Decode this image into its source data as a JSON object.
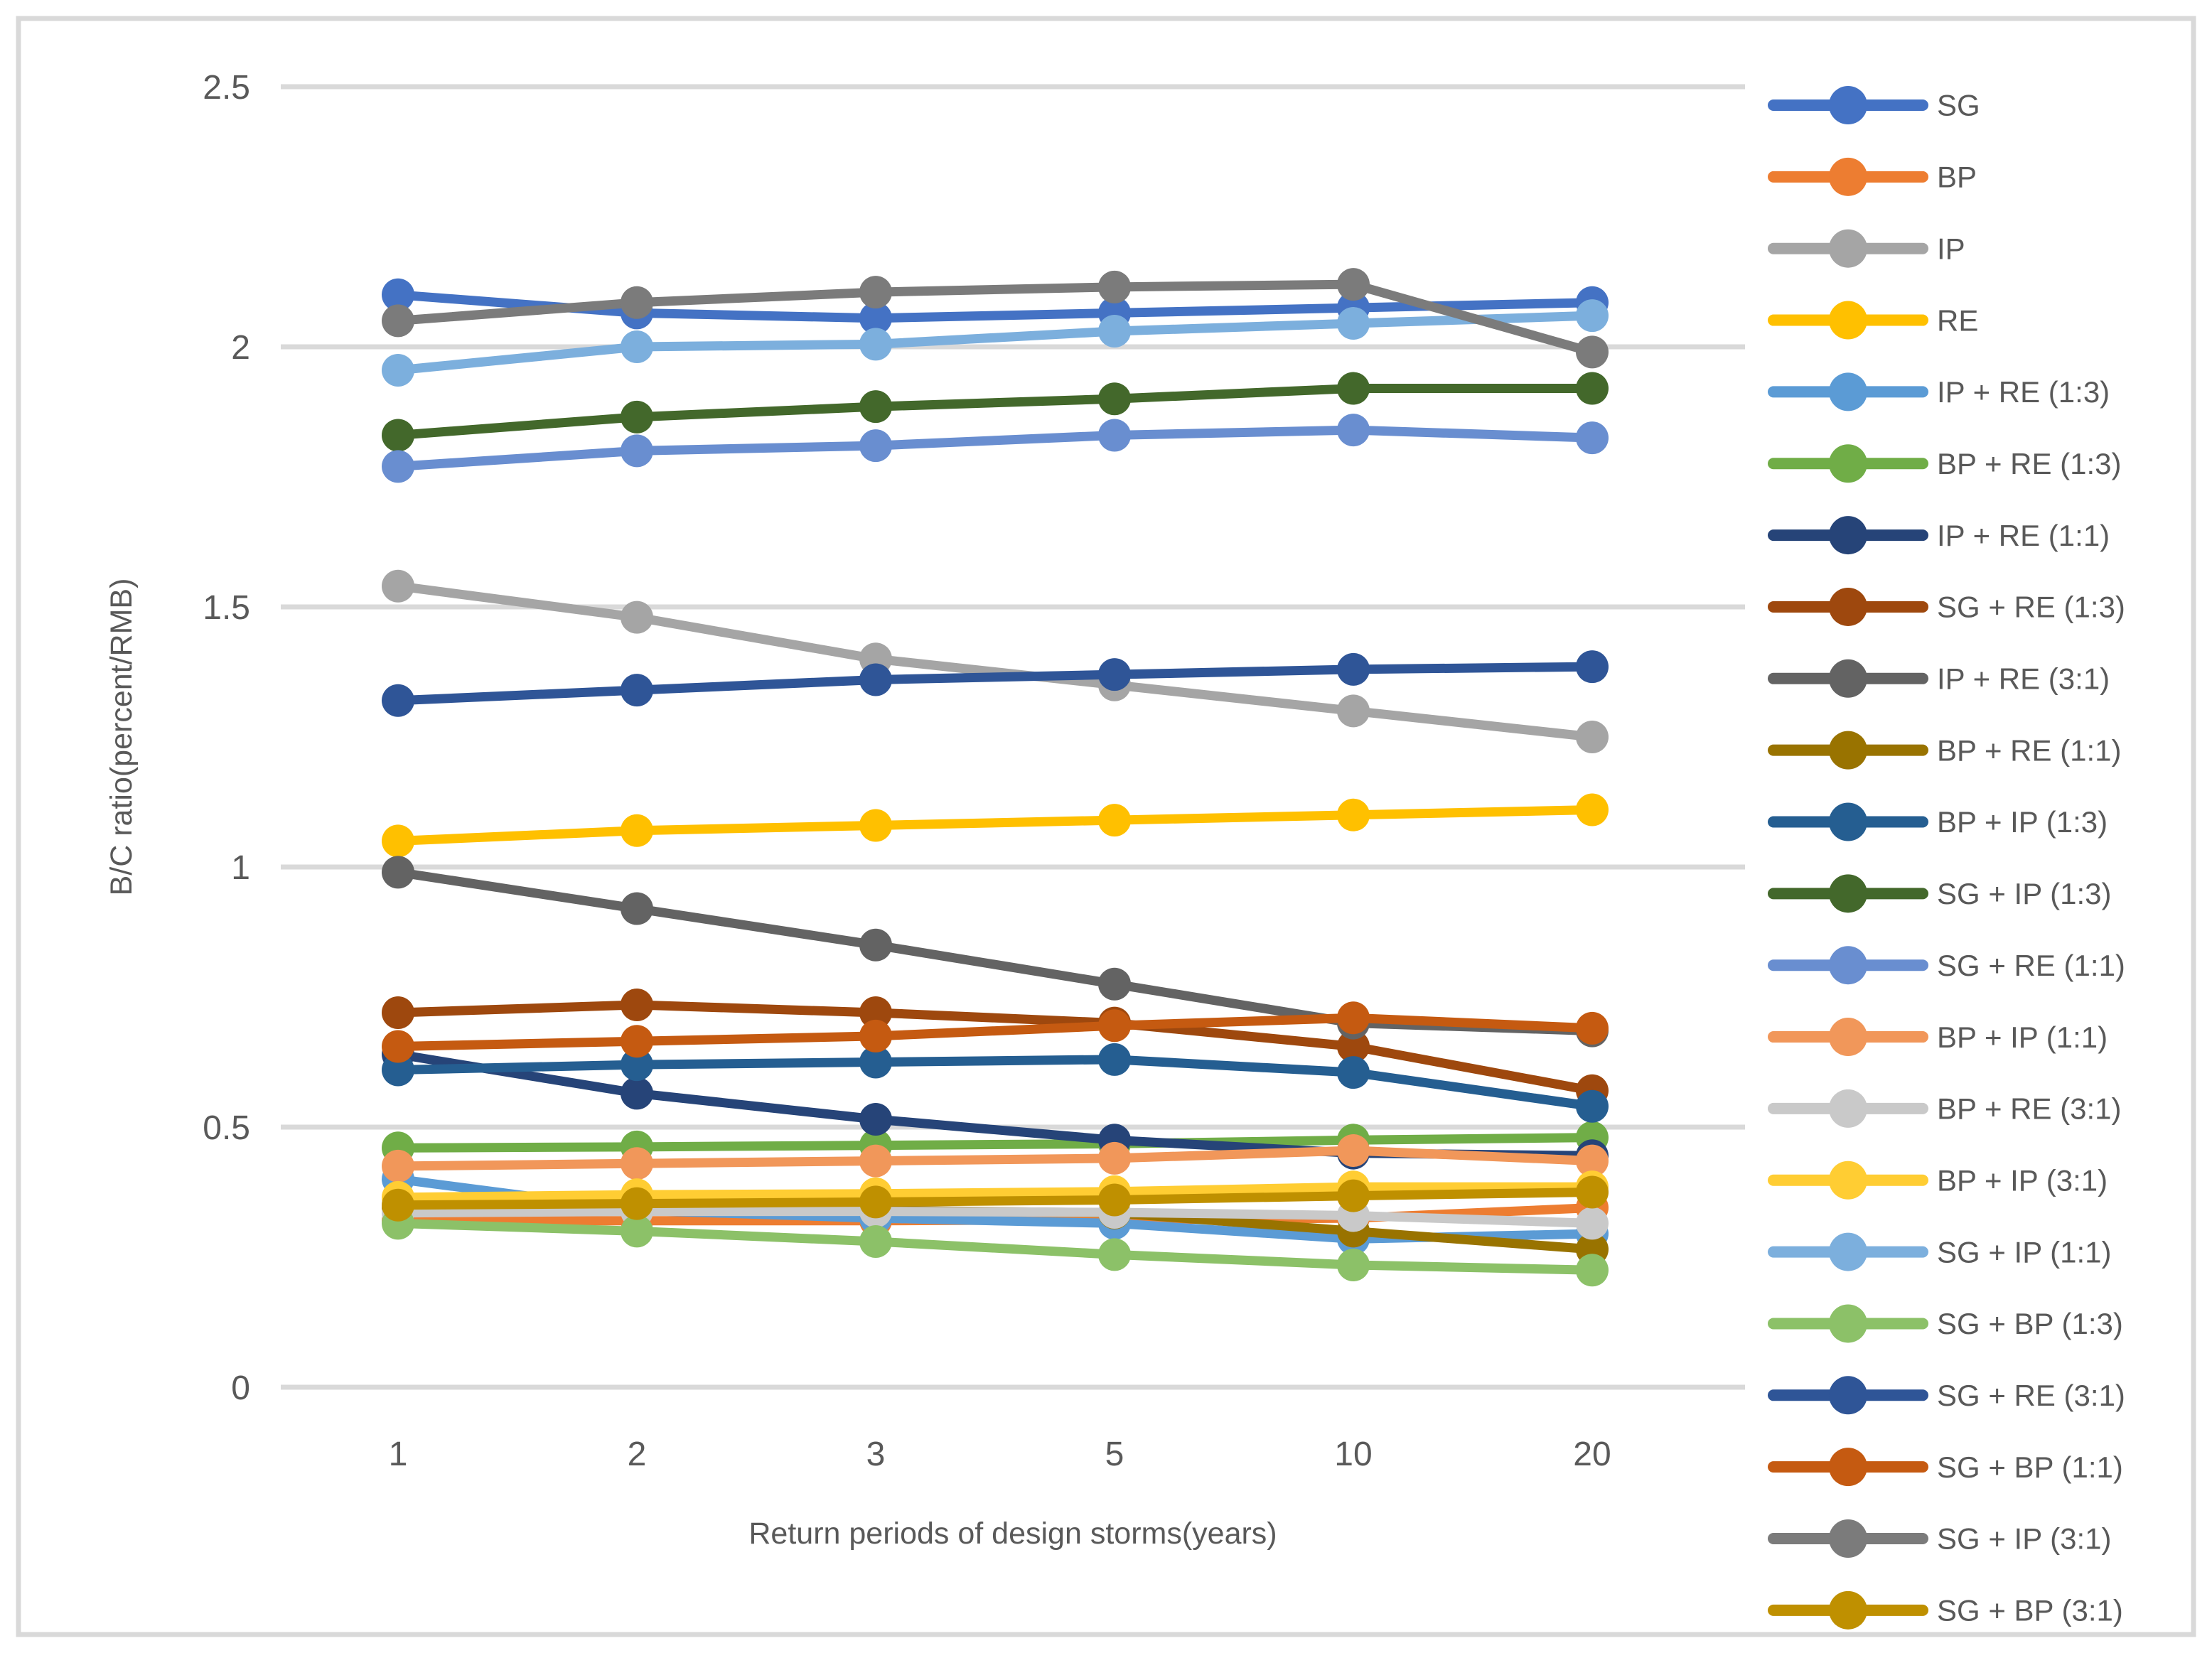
{
  "styles": {
    "background": "#FFFFFF",
    "frame_border_color": "#D9D9D9",
    "gridline_color": "#D9D9D9",
    "text_color": "#595959"
  },
  "chart_data": {
    "type": "line",
    "title": "",
    "xlabel": "Return periods of design storms(years)",
    "ylabel": "B/C ratio(percent/RMB)",
    "categories": [
      1,
      2,
      3,
      5,
      10,
      20
    ],
    "x_tick_labels": [
      "1",
      "2",
      "3",
      "5",
      "10",
      "20"
    ],
    "y_ticks": [
      0,
      0.5,
      1,
      1.5,
      2,
      2.5
    ],
    "y_tick_labels": [
      "0",
      "0.5",
      "1",
      "1.5",
      "2",
      "2.5"
    ],
    "ylim": [
      0,
      2.5
    ],
    "grid": "horizontal",
    "legend_position": "right",
    "marker": "circle",
    "series": [
      {
        "name": "SG",
        "color": "#4472C4",
        "values": [
          2.1,
          2.065,
          2.055,
          2.065,
          2.075,
          2.085
        ]
      },
      {
        "name": "BP",
        "color": "#ED7D31",
        "values": [
          0.32,
          0.32,
          0.32,
          0.322,
          0.325,
          0.345
        ]
      },
      {
        "name": "IP",
        "color": "#A5A5A5",
        "values": [
          1.54,
          1.48,
          1.4,
          1.35,
          1.3,
          1.25
        ]
      },
      {
        "name": "RE",
        "color": "#FFC000",
        "values": [
          1.05,
          1.07,
          1.08,
          1.09,
          1.1,
          1.11
        ]
      },
      {
        "name": "IP + RE (1:3)",
        "color": "#5B9BD5",
        "values": [
          0.4,
          0.34,
          0.325,
          0.315,
          0.285,
          0.295
        ]
      },
      {
        "name": "BP + RE (1:3)",
        "color": "#70AD47",
        "values": [
          0.46,
          0.462,
          0.465,
          0.468,
          0.475,
          0.48
        ]
      },
      {
        "name": "IP + RE (1:1)",
        "color": "#264478",
        "values": [
          0.64,
          0.565,
          0.515,
          0.475,
          0.45,
          0.445
        ]
      },
      {
        "name": "SG + RE (1:3)",
        "color": "#9E480E",
        "values": [
          0.72,
          0.735,
          0.72,
          0.7,
          0.655,
          0.57
        ]
      },
      {
        "name": "IP + RE (3:1)",
        "color": "#636363",
        "values": [
          0.99,
          0.92,
          0.85,
          0.775,
          0.7,
          0.685
        ]
      },
      {
        "name": "BP + RE (1:1)",
        "color": "#997300",
        "values": [
          0.345,
          0.343,
          0.34,
          0.335,
          0.3,
          0.265
        ]
      },
      {
        "name": "BP + IP (1:3)",
        "color": "#255E91",
        "values": [
          0.61,
          0.62,
          0.625,
          0.63,
          0.605,
          0.54
        ]
      },
      {
        "name": "SG + IP (1:3)",
        "color": "#43682B",
        "values": [
          1.83,
          1.865,
          1.885,
          1.9,
          1.92,
          1.92
        ]
      },
      {
        "name": "SG + RE (1:1)",
        "color": "#698ED0",
        "values": [
          1.77,
          1.8,
          1.81,
          1.83,
          1.84,
          1.825
        ]
      },
      {
        "name": "BP + IP (1:1)",
        "color": "#F1975A",
        "values": [
          0.425,
          0.43,
          0.435,
          0.44,
          0.455,
          0.435
        ]
      },
      {
        "name": "BP + RE (3:1)",
        "color": "#C9C9C9",
        "values": [
          0.335,
          0.338,
          0.338,
          0.336,
          0.33,
          0.315
        ]
      },
      {
        "name": "BP + IP (3:1)",
        "color": "#FFCD33",
        "values": [
          0.365,
          0.37,
          0.372,
          0.376,
          0.385,
          0.385
        ]
      },
      {
        "name": "SG + IP (1:1)",
        "color": "#7CAFDD",
        "values": [
          1.955,
          2.0,
          2.005,
          2.03,
          2.045,
          2.06
        ]
      },
      {
        "name": "SG + BP (1:3)",
        "color": "#8CC168",
        "values": [
          0.315,
          0.3,
          0.28,
          0.255,
          0.235,
          0.225
        ]
      },
      {
        "name": "SG + RE (3:1)",
        "color": "#2F5597",
        "values": [
          1.32,
          1.34,
          1.36,
          1.37,
          1.38,
          1.385
        ]
      },
      {
        "name": "SG + BP (1:1)",
        "color": "#C55A11",
        "values": [
          0.655,
          0.665,
          0.675,
          0.695,
          0.71,
          0.69
        ]
      },
      {
        "name": "SG + IP (3:1)",
        "color": "#7B7B7B",
        "values": [
          2.05,
          2.085,
          2.105,
          2.115,
          2.12,
          1.99
        ]
      },
      {
        "name": "SG + BP (3:1)",
        "color": "#BF9000",
        "values": [
          0.35,
          0.353,
          0.356,
          0.36,
          0.368,
          0.375
        ]
      }
    ]
  }
}
